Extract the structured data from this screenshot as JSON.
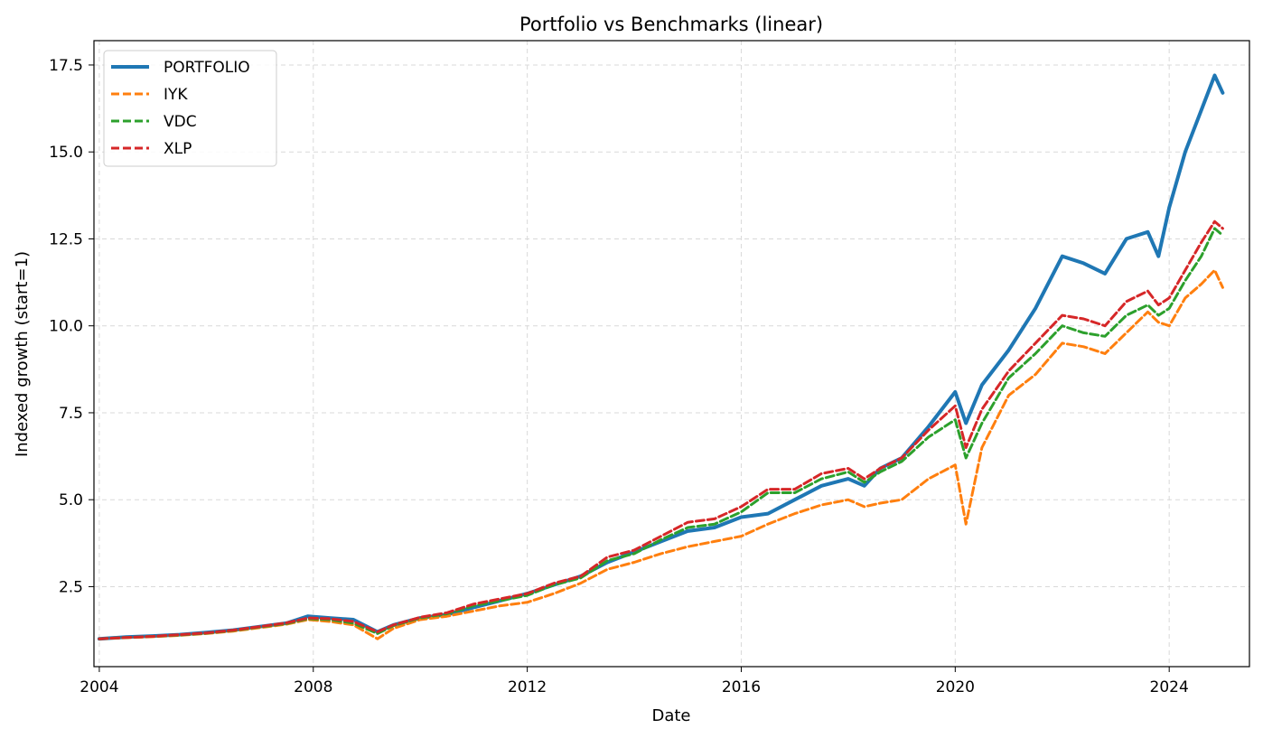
{
  "chart_data": {
    "type": "line",
    "title": "Portfolio vs Benchmarks (linear)",
    "xlabel": "Date",
    "ylabel": "Indexed growth (start=1)",
    "xlim": [
      2003.9,
      2025.5
    ],
    "ylim": [
      0.2,
      18.2
    ],
    "xticks": [
      2004,
      2008,
      2012,
      2016,
      2020,
      2024
    ],
    "xtick_labels": [
      "2004",
      "2008",
      "2012",
      "2016",
      "2020",
      "2024"
    ],
    "yticks": [
      2.5,
      5.0,
      7.5,
      10.0,
      12.5,
      15.0,
      17.5
    ],
    "ytick_labels": [
      "2.5",
      "5.0",
      "7.5",
      "10.0",
      "12.5",
      "15.0",
      "17.5"
    ],
    "grid": true,
    "legend_position": "top-left",
    "x": [
      2004.0,
      2004.5,
      2005.0,
      2005.5,
      2006.0,
      2006.5,
      2007.0,
      2007.5,
      2007.9,
      2008.3,
      2008.75,
      2009.2,
      2009.5,
      2010.0,
      2010.5,
      2011.0,
      2011.5,
      2012.0,
      2012.5,
      2013.0,
      2013.5,
      2014.0,
      2014.5,
      2015.0,
      2015.5,
      2016.0,
      2016.5,
      2017.0,
      2017.5,
      2018.0,
      2018.3,
      2018.6,
      2019.0,
      2019.5,
      2020.0,
      2020.2,
      2020.5,
      2021.0,
      2021.5,
      2022.0,
      2022.4,
      2022.8,
      2023.2,
      2023.6,
      2023.8,
      2024.0,
      2024.3,
      2024.6,
      2024.85,
      2025.0
    ],
    "series": [
      {
        "name": "PORTFOLIO",
        "color": "#1f77b4",
        "style": "solid",
        "values": [
          1.0,
          1.05,
          1.08,
          1.12,
          1.18,
          1.25,
          1.35,
          1.45,
          1.65,
          1.6,
          1.55,
          1.2,
          1.4,
          1.6,
          1.7,
          1.9,
          2.1,
          2.3,
          2.55,
          2.8,
          3.2,
          3.5,
          3.8,
          4.1,
          4.2,
          4.5,
          4.6,
          5.0,
          5.4,
          5.6,
          5.4,
          5.9,
          6.2,
          7.1,
          8.1,
          7.2,
          8.3,
          9.3,
          10.5,
          12.0,
          11.8,
          11.5,
          12.5,
          12.7,
          12.0,
          13.4,
          15.0,
          16.2,
          17.2,
          16.7
        ]
      },
      {
        "name": "IYK",
        "color": "#ff7f0e",
        "style": "dashed",
        "values": [
          1.0,
          1.03,
          1.06,
          1.1,
          1.15,
          1.22,
          1.32,
          1.42,
          1.55,
          1.5,
          1.4,
          1.0,
          1.3,
          1.55,
          1.65,
          1.8,
          1.95,
          2.05,
          2.3,
          2.6,
          3.0,
          3.2,
          3.45,
          3.65,
          3.8,
          3.95,
          4.3,
          4.6,
          4.85,
          5.0,
          4.8,
          4.9,
          5.0,
          5.6,
          6.0,
          4.3,
          6.5,
          8.0,
          8.6,
          9.5,
          9.4,
          9.2,
          9.8,
          10.4,
          10.1,
          10.0,
          10.8,
          11.2,
          11.6,
          11.1
        ]
      },
      {
        "name": "VDC",
        "color": "#2ca02c",
        "style": "dashed",
        "values": [
          1.0,
          1.04,
          1.07,
          1.11,
          1.16,
          1.24,
          1.34,
          1.44,
          1.58,
          1.55,
          1.45,
          1.15,
          1.38,
          1.6,
          1.72,
          1.95,
          2.1,
          2.25,
          2.55,
          2.75,
          3.25,
          3.45,
          3.85,
          4.2,
          4.3,
          4.65,
          5.2,
          5.2,
          5.6,
          5.8,
          5.5,
          5.8,
          6.1,
          6.8,
          7.3,
          6.2,
          7.2,
          8.5,
          9.2,
          10.0,
          9.8,
          9.7,
          10.3,
          10.6,
          10.3,
          10.5,
          11.3,
          12.0,
          12.8,
          12.6
        ]
      },
      {
        "name": "XLP",
        "color": "#d62728",
        "style": "dashed",
        "values": [
          1.0,
          1.04,
          1.07,
          1.12,
          1.17,
          1.25,
          1.35,
          1.46,
          1.6,
          1.58,
          1.5,
          1.2,
          1.4,
          1.62,
          1.75,
          2.0,
          2.15,
          2.3,
          2.6,
          2.8,
          3.35,
          3.55,
          3.95,
          4.35,
          4.45,
          4.8,
          5.3,
          5.3,
          5.75,
          5.9,
          5.6,
          5.9,
          6.2,
          7.0,
          7.7,
          6.5,
          7.6,
          8.7,
          9.5,
          10.3,
          10.2,
          10.0,
          10.7,
          11.0,
          10.6,
          10.8,
          11.6,
          12.4,
          13.0,
          12.8
        ]
      }
    ]
  }
}
